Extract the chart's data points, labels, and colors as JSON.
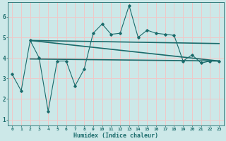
{
  "xlabel": "Humidex (Indice chaleur)",
  "bg_color": "#cce8e8",
  "plot_bg_color": "#cce8e8",
  "grid_color": "#f0c8c8",
  "line_color": "#1a6b6b",
  "xlim": [
    -0.5,
    23.5
  ],
  "ylim": [
    0.7,
    6.7
  ],
  "x_ticks": [
    0,
    1,
    2,
    3,
    4,
    5,
    6,
    7,
    8,
    9,
    10,
    11,
    12,
    13,
    14,
    15,
    16,
    17,
    18,
    19,
    20,
    21,
    22,
    23
  ],
  "y_ticks": [
    1,
    2,
    3,
    4,
    5,
    6
  ],
  "series1_x": [
    0,
    1,
    2,
    3,
    4,
    5,
    6,
    7,
    8,
    9,
    10,
    11,
    12,
    13,
    14,
    15,
    16,
    17,
    18,
    19,
    20,
    21,
    22,
    23
  ],
  "series1_y": [
    3.2,
    2.4,
    4.85,
    4.0,
    1.4,
    3.85,
    3.85,
    2.65,
    3.45,
    5.2,
    5.65,
    5.15,
    5.2,
    6.55,
    5.0,
    5.35,
    5.2,
    5.15,
    5.1,
    3.85,
    4.15,
    3.75,
    3.85,
    3.85
  ],
  "series2_x": [
    2,
    23
  ],
  "series2_y": [
    4.85,
    4.7
  ],
  "series3_x": [
    2,
    23
  ],
  "series3_y": [
    4.85,
    3.85
  ],
  "series4_x": [
    2,
    23
  ],
  "series4_y": [
    3.95,
    3.85
  ]
}
